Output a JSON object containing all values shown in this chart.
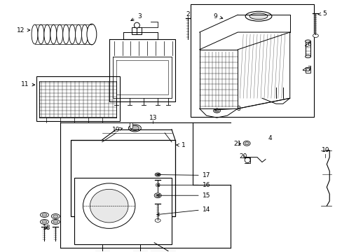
{
  "bg_color": "#ffffff",
  "line_color": "#000000",
  "fig_width": 4.89,
  "fig_height": 3.6,
  "dpi": 100,
  "labels": {
    "1": [
      261,
      207,
      255,
      218
    ],
    "2": [
      269,
      27,
      269,
      22
    ],
    "3": [
      194,
      22,
      183,
      28
    ],
    "4": [
      384,
      200,
      384,
      200
    ],
    "5": [
      462,
      20,
      450,
      25
    ],
    "6": [
      440,
      67,
      432,
      72
    ],
    "7": [
      440,
      100,
      430,
      104
    ],
    "8": [
      344,
      152,
      334,
      157
    ],
    "9": [
      306,
      20,
      318,
      28
    ],
    "10": [
      466,
      218,
      466,
      218
    ],
    "11": [
      30,
      118,
      50,
      121
    ],
    "12": [
      22,
      38,
      50,
      42
    ],
    "13": [
      214,
      168,
      214,
      168
    ],
    "14": [
      295,
      315,
      310,
      319
    ],
    "15": [
      294,
      286,
      307,
      290
    ],
    "16": [
      294,
      270,
      307,
      274
    ],
    "17": [
      294,
      254,
      307,
      258
    ],
    "18": [
      65,
      310,
      75,
      316
    ],
    "19": [
      163,
      185,
      175,
      190
    ],
    "20": [
      348,
      224,
      358,
      228
    ],
    "21": [
      338,
      206,
      352,
      210
    ]
  }
}
